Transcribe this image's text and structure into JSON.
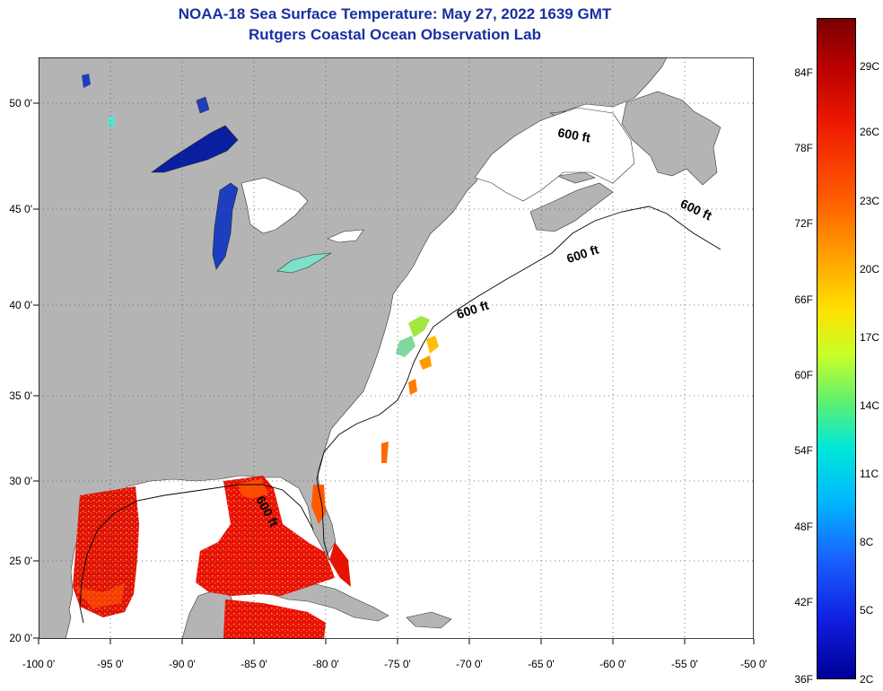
{
  "header": {
    "title": "NOAA-18 Sea Surface Temperature:  May 27, 2022 1639 GMT",
    "subtitle": "Rutgers Coastal Ocean Observation Lab"
  },
  "axes": {
    "lat_labels": [
      "50 0'",
      "45 0'",
      "40 0'",
      "35 0'",
      "30 0'",
      "25 0'",
      "20 0'"
    ],
    "lon_labels": [
      "-100 0'",
      "-95 0'",
      "-90 0'",
      "-85 0'",
      "-80 0'",
      "-75 0'",
      "-70 0'",
      "-65 0'",
      "-60 0'",
      "-55 0'",
      "-50 0'"
    ]
  },
  "contour_labels": [
    "600 ft",
    "600 ft",
    "600 ft",
    "600 ft",
    "600 ft"
  ],
  "colorbar": {
    "fahrenheit": [
      "84F",
      "78F",
      "72F",
      "66F",
      "60F",
      "54F",
      "48F",
      "42F",
      "36F"
    ],
    "celsius": [
      "29C",
      "26C",
      "23C",
      "20C",
      "17C",
      "14C",
      "11C",
      "8C",
      "5C",
      "2C"
    ],
    "colors": {
      "top": "#7a0000",
      "red": "#ee1a00",
      "orange": "#ff5a00",
      "yellow": "#ffe000",
      "green": "#60f070",
      "cyan": "#00e8d8",
      "blue": "#1a60ff",
      "bottom": "#000098"
    }
  },
  "map": {
    "land_color": "#b4b4b4",
    "ocean_color": "#ffffff",
    "grid": "dotted"
  }
}
